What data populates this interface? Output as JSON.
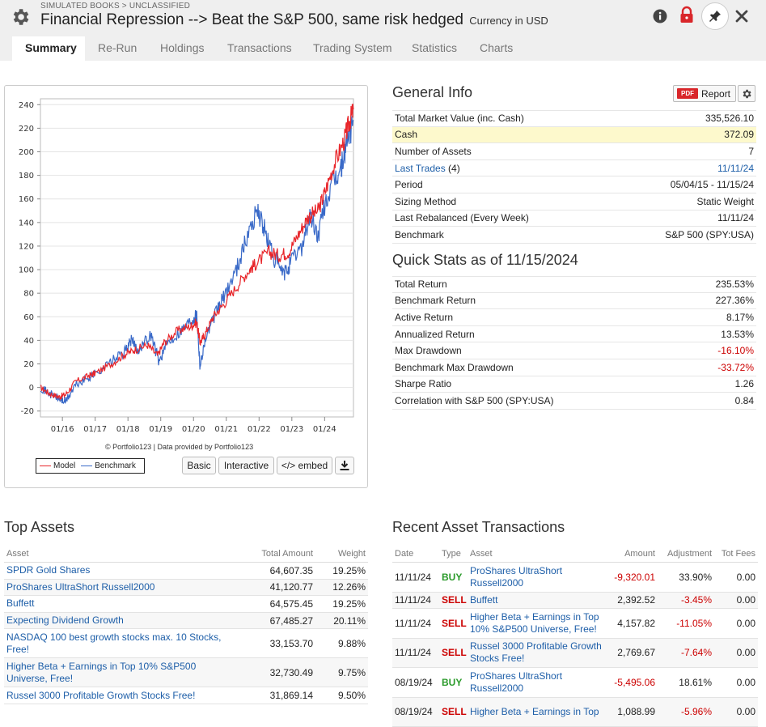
{
  "header": {
    "breadcrumb": "SIMULATED BOOKS > UNCLASSIFIED",
    "title": "Financial Repression --> Beat the S&P 500, same risk hedged",
    "currency": "Currency in USD"
  },
  "tabs": [
    "Summary",
    "Re-Run",
    "Holdings",
    "Transactions",
    "Trading System",
    "Statistics",
    "Charts"
  ],
  "chart": {
    "credit": "© Portfolio123 | Data provided by Portfolio123",
    "buttons": {
      "basic": "Basic",
      "interactive": "Interactive",
      "embed": "</> embed"
    }
  },
  "chart_data": {
    "type": "line",
    "x_labels": [
      "01/16",
      "01/17",
      "01/18",
      "01/19",
      "01/20",
      "01/21",
      "01/22",
      "01/23",
      "01/24"
    ],
    "y_ticks": [
      -20,
      0,
      20,
      40,
      60,
      80,
      100,
      120,
      140,
      160,
      180,
      200,
      220,
      240
    ],
    "ylim": [
      -25,
      245
    ],
    "xlim": [
      2015.33,
      2024.88
    ],
    "series": [
      {
        "name": "Model",
        "color": "#e8262b",
        "points": [
          [
            2015.33,
            0
          ],
          [
            2015.6,
            -5
          ],
          [
            2015.9,
            -8
          ],
          [
            2016.1,
            -6
          ],
          [
            2016.4,
            5
          ],
          [
            2016.8,
            10
          ],
          [
            2017.0,
            12
          ],
          [
            2017.5,
            20
          ],
          [
            2017.9,
            28
          ],
          [
            2018.2,
            32
          ],
          [
            2018.6,
            36
          ],
          [
            2018.9,
            27
          ],
          [
            2019.1,
            38
          ],
          [
            2019.5,
            48
          ],
          [
            2019.9,
            52
          ],
          [
            2020.1,
            55
          ],
          [
            2020.2,
            38
          ],
          [
            2020.35,
            45
          ],
          [
            2020.6,
            60
          ],
          [
            2020.9,
            70
          ],
          [
            2021.3,
            85
          ],
          [
            2021.7,
            100
          ],
          [
            2021.9,
            105
          ],
          [
            2022.3,
            115
          ],
          [
            2022.6,
            112
          ],
          [
            2022.9,
            115
          ],
          [
            2023.2,
            130
          ],
          [
            2023.5,
            145
          ],
          [
            2023.8,
            150
          ],
          [
            2024.0,
            165
          ],
          [
            2024.3,
            190
          ],
          [
            2024.6,
            210
          ],
          [
            2024.75,
            225
          ],
          [
            2024.88,
            236
          ]
        ]
      },
      {
        "name": "Benchmark",
        "color": "#3a6ac8",
        "points": [
          [
            2015.33,
            0
          ],
          [
            2015.6,
            -5
          ],
          [
            2015.9,
            -10
          ],
          [
            2016.1,
            -12
          ],
          [
            2016.4,
            2
          ],
          [
            2016.8,
            8
          ],
          [
            2017.0,
            12
          ],
          [
            2017.5,
            22
          ],
          [
            2017.9,
            30
          ],
          [
            2018.1,
            40
          ],
          [
            2018.3,
            32
          ],
          [
            2018.7,
            45
          ],
          [
            2018.95,
            22
          ],
          [
            2019.2,
            38
          ],
          [
            2019.6,
            48
          ],
          [
            2019.95,
            58
          ],
          [
            2020.1,
            62
          ],
          [
            2020.2,
            18
          ],
          [
            2020.35,
            40
          ],
          [
            2020.7,
            65
          ],
          [
            2020.95,
            78
          ],
          [
            2021.3,
            100
          ],
          [
            2021.6,
            125
          ],
          [
            2021.95,
            152
          ],
          [
            2022.2,
            130
          ],
          [
            2022.45,
            110
          ],
          [
            2022.75,
            95
          ],
          [
            2022.95,
            105
          ],
          [
            2023.3,
            120
          ],
          [
            2023.55,
            145
          ],
          [
            2023.8,
            128
          ],
          [
            2024.0,
            155
          ],
          [
            2024.3,
            175
          ],
          [
            2024.5,
            185
          ],
          [
            2024.65,
            205
          ],
          [
            2024.88,
            227
          ]
        ]
      }
    ]
  },
  "general_info": {
    "title": "General Info",
    "report_button": "Report",
    "pdf_badge": "PDF",
    "rows": [
      {
        "label": "Total Market Value (inc. Cash)",
        "value": "335,526.10"
      },
      {
        "label": "Cash",
        "value": "372.09"
      },
      {
        "label": "Number of Assets",
        "value": "7"
      },
      {
        "label": "Last Trades",
        "label_suffix": "(4)",
        "value": "11/11/24"
      },
      {
        "label": "Period",
        "value": "05/04/15 - 11/15/24"
      },
      {
        "label": "Sizing Method",
        "value": "Static Weight"
      },
      {
        "label": "Last Rebalanced (Every Week)",
        "value": "11/11/24"
      },
      {
        "label": "Benchmark",
        "value": "S&P 500 (SPY:USA)"
      }
    ]
  },
  "quick_stats": {
    "title": "Quick Stats as of 11/15/2024",
    "rows": [
      {
        "label": "Total Return",
        "value": "235.53%"
      },
      {
        "label": "Benchmark Return",
        "value": "227.36%"
      },
      {
        "label": "Active Return",
        "value": "8.17%"
      },
      {
        "label": "Annualized Return",
        "value": "13.53%"
      },
      {
        "label": "Max Drawdown",
        "value": "-16.10%"
      },
      {
        "label": "Benchmark Max Drawdown",
        "value": "-33.72%"
      },
      {
        "label": "Sharpe Ratio",
        "value": "1.26"
      },
      {
        "label": "Correlation with S&P 500 (SPY:USA)",
        "value": "0.84"
      }
    ]
  },
  "top_assets": {
    "title": "Top Assets",
    "headers": [
      "Asset",
      "Total Amount",
      "Weight"
    ],
    "rows": [
      {
        "asset": "SPDR Gold Shares",
        "amount": "64,607.35",
        "weight": "19.25%"
      },
      {
        "asset": "ProShares UltraShort Russell2000",
        "amount": "41,120.77",
        "weight": "12.26%"
      },
      {
        "asset": "Buffett",
        "amount": "64,575.45",
        "weight": "19.25%"
      },
      {
        "asset": "Expecting Dividend Growth",
        "amount": "67,485.27",
        "weight": "20.11%"
      },
      {
        "asset": "NASDAQ 100 best growth stocks max. 10 Stocks, Free!",
        "amount": "33,153.70",
        "weight": "9.88%"
      },
      {
        "asset": "Higher Beta + Earnings in Top 10% S&P500 Universe, Free!",
        "amount": "32,730.49",
        "weight": "9.75%"
      },
      {
        "asset": "Russel 3000 Profitable Growth Stocks Free!",
        "amount": "31,869.14",
        "weight": "9.50%"
      }
    ]
  },
  "recent_transactions": {
    "title": "Recent Asset Transactions",
    "headers": [
      "Date",
      "Type",
      "Asset",
      "Amount",
      "Adjustment",
      "Tot Fees"
    ],
    "rows": [
      {
        "date": "11/11/24",
        "type": "BUY",
        "asset": "ProShares UltraShort Russell2000",
        "amount": "-9,320.01",
        "adjustment": "33.90%",
        "fees": "0.00"
      },
      {
        "date": "11/11/24",
        "type": "SELL",
        "asset": "Buffett",
        "amount": "2,392.52",
        "adjustment": "-3.45%",
        "fees": "0.00"
      },
      {
        "date": "11/11/24",
        "type": "SELL",
        "asset": "Higher Beta + Earnings in Top 10% S&P500 Universe, Free!",
        "amount": "4,157.82",
        "adjustment": "-11.05%",
        "fees": "0.00"
      },
      {
        "date": "11/11/24",
        "type": "SELL",
        "asset": "Russel 3000 Profitable Growth Stocks Free!",
        "amount": "2,769.67",
        "adjustment": "-7.64%",
        "fees": "0.00"
      },
      {
        "date": "08/19/24",
        "type": "BUY",
        "asset": "ProShares UltraShort Russell2000",
        "amount": "-5,495.06",
        "adjustment": "18.61%",
        "fees": "0.00"
      },
      {
        "date": "08/19/24",
        "type": "SELL",
        "asset": "Higher Beta + Earnings in Top",
        "amount": "1,088.99",
        "adjustment": "-5.96%",
        "fees": "0.00"
      }
    ]
  }
}
